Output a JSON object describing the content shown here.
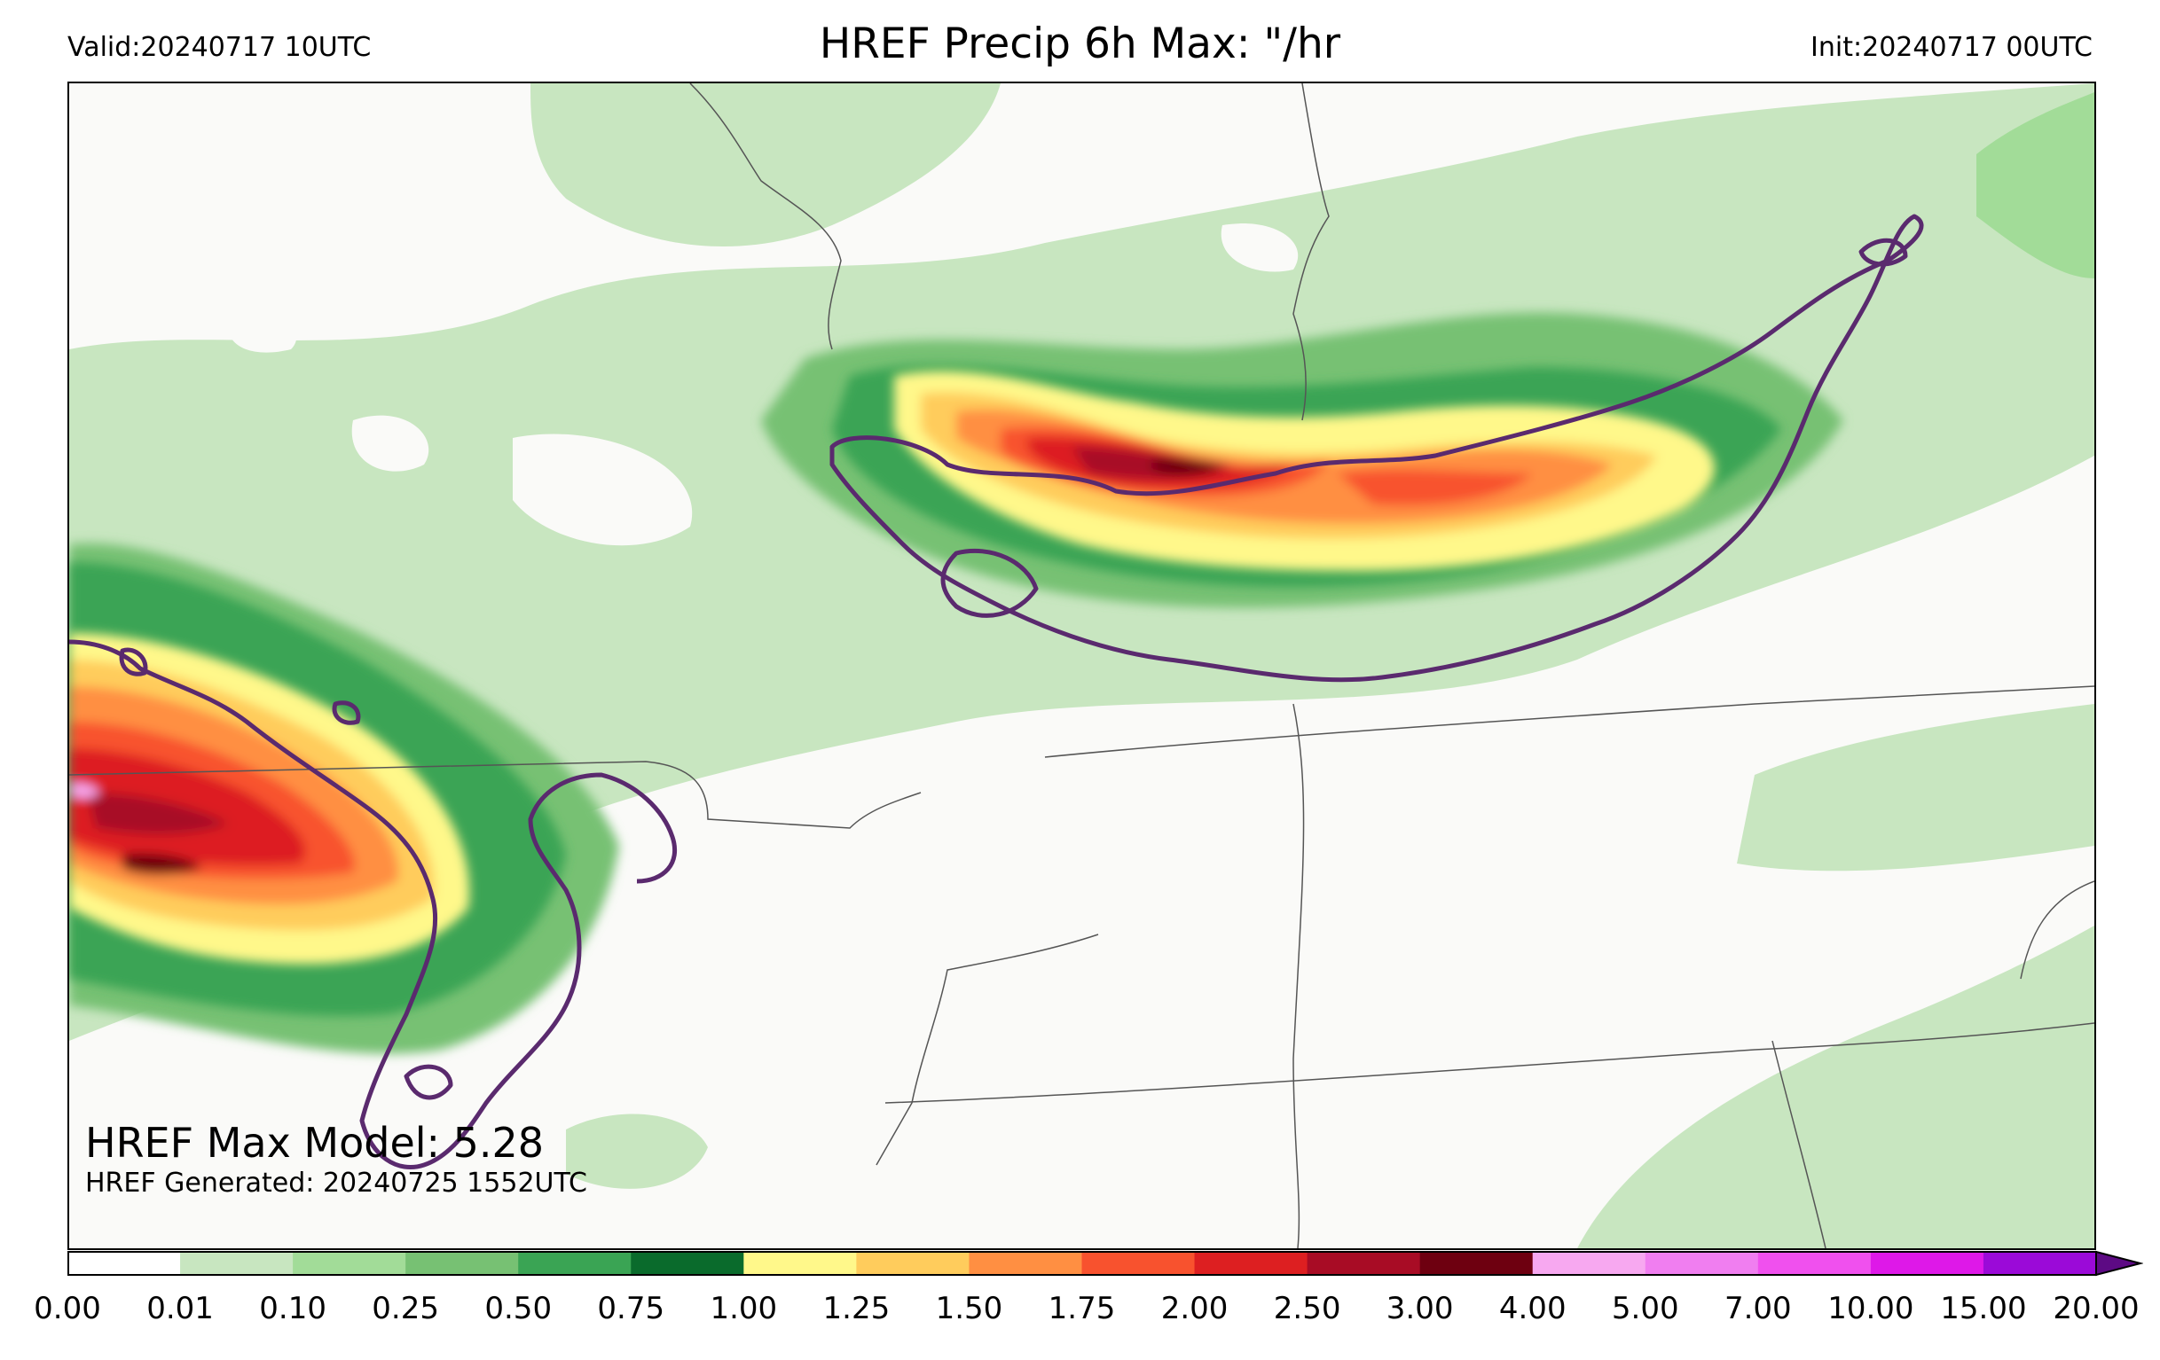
{
  "header": {
    "valid": "Valid:20240717 10UTC",
    "title": "HREF Precip 6h Max: \"/hr",
    "init": "Init:20240717 00UTC"
  },
  "annotation": {
    "max_model": "HREF Max Model: 5.28",
    "generated": "HREF Generated: 20240725 1552UTC"
  },
  "colorbar": {
    "levels": [
      "0.00",
      "0.01",
      "0.10",
      "0.25",
      "0.50",
      "0.75",
      "1.00",
      "1.25",
      "1.50",
      "1.75",
      "2.00",
      "2.50",
      "3.00",
      "4.00",
      "5.00",
      "7.00",
      "10.00",
      "15.00",
      "20.00"
    ],
    "colors": [
      "#ffffff",
      "#c8e6c0",
      "#a2dc98",
      "#77c173",
      "#3aa454",
      "#0a6b2c",
      "#fff88a",
      "#ffcc5c",
      "#ff8f42",
      "#f8522e",
      "#dd1f21",
      "#a80c25",
      "#6e0010",
      "#f7a8f0",
      "#f07ef0",
      "#f050ee",
      "#de18e8",
      "#9b0ad8",
      "#5d0a84"
    ],
    "extend": "max"
  },
  "map_layers": {
    "field": "HREF 6h max precip rate (in/hr)",
    "contour_color": "#5a2a6e",
    "border_color": "#555555"
  }
}
